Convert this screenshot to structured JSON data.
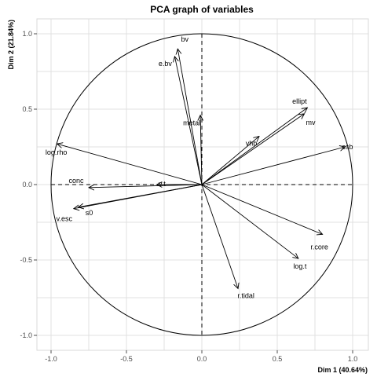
{
  "chart_data": {
    "type": "scatter",
    "subtype": "pca-correlation-circle",
    "title": "PCA graph of variables",
    "xlabel": "Dim 1 (40.64%)",
    "ylabel": "Dim 2 (21.84%)",
    "xlim": [
      -1.1,
      1.1
    ],
    "ylim": [
      -1.1,
      1.1
    ],
    "xticks": [
      "-1.0",
      "-0.5",
      "0.0",
      "0.5",
      "1.0"
    ],
    "yticks": [
      "-1.0",
      "-0.5",
      "0.0",
      "0.5",
      "1.0"
    ],
    "grid": true,
    "variables": [
      {
        "name": "bv",
        "x": -0.16,
        "y": 0.9
      },
      {
        "name": "e.bv",
        "x": -0.18,
        "y": 0.85
      },
      {
        "name": "ellipt",
        "x": 0.7,
        "y": 0.51
      },
      {
        "name": "mv",
        "x": 0.68,
        "y": 0.47
      },
      {
        "name": "metal",
        "x": -0.01,
        "y": 0.46
      },
      {
        "name": "vhb",
        "x": 0.38,
        "y": 0.32
      },
      {
        "name": "csb",
        "x": 0.95,
        "y": 0.25
      },
      {
        "name": "log.rho",
        "x": -0.96,
        "y": 0.27
      },
      {
        "name": "v.t",
        "x": -0.3,
        "y": 0.0
      },
      {
        "name": "conc",
        "x": -0.75,
        "y": -0.02
      },
      {
        "name": "s0",
        "x": -0.82,
        "y": -0.15
      },
      {
        "name": "v.esc",
        "x": -0.85,
        "y": -0.16
      },
      {
        "name": "r.core",
        "x": 0.8,
        "y": -0.33
      },
      {
        "name": "log.t",
        "x": 0.64,
        "y": -0.49
      },
      {
        "name": "r.tidal",
        "x": 0.24,
        "y": -0.69
      }
    ]
  }
}
